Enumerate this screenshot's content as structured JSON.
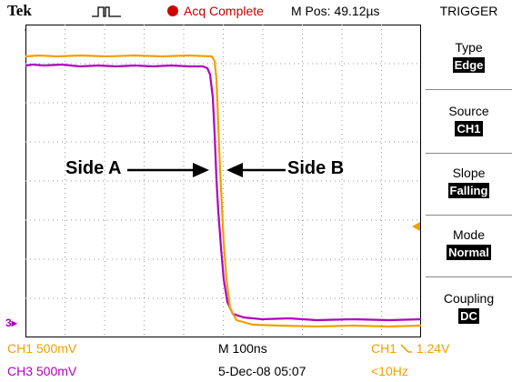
{
  "header": {
    "brand": "Tek",
    "trigger_symbol_icon": "pulse-icon",
    "status": "Acq Complete",
    "mpos": "M Pos: 49.12µs"
  },
  "trigger_menu": {
    "title": "TRIGGER",
    "items": [
      {
        "label": "Type",
        "value": "Edge"
      },
      {
        "label": "Source",
        "value": "CH1"
      },
      {
        "label": "Slope",
        "value": "Falling"
      },
      {
        "label": "Mode",
        "value": "Normal"
      },
      {
        "label": "Coupling",
        "value": "DC"
      }
    ]
  },
  "annotations": {
    "side_a": "Side A",
    "side_b": "Side B"
  },
  "markers": {
    "ch3_ground": "3"
  },
  "footer": {
    "ch1_scale": "CH1  500mV",
    "ch3_scale": "CH3  500mV",
    "timebase": "M 100ns",
    "datetime": "5-Dec-08 05:07",
    "trigger_source": "CH1",
    "trigger_level": "1.24V",
    "trigger_freq": "<10Hz"
  },
  "colors": {
    "ch1": "#f0a000",
    "ch3": "#b000c0",
    "status": "#c00000"
  }
}
